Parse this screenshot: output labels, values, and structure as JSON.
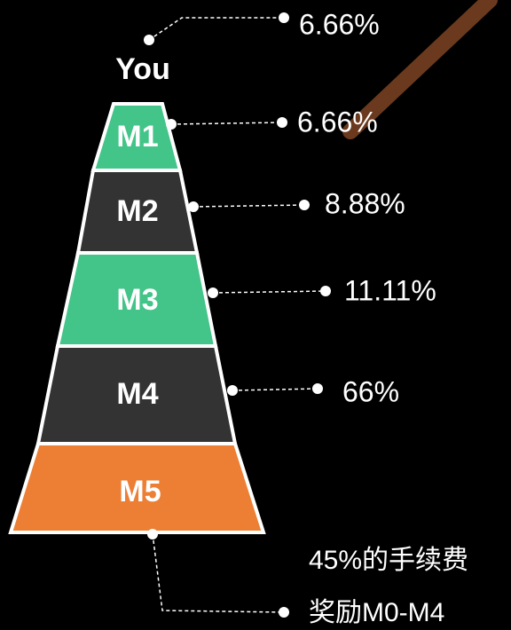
{
  "top": {
    "label": "You",
    "value": "6.66%"
  },
  "levels": [
    {
      "label": "M1",
      "value": "6.66%"
    },
    {
      "label": "M2",
      "value": "8.88%"
    },
    {
      "label": "M3",
      "value": "11.11%"
    },
    {
      "label": "M4",
      "value": "66%"
    },
    {
      "label": "M5"
    }
  ],
  "note": {
    "line1": "45%的手续费",
    "line2": "奖励M0-M4"
  }
}
